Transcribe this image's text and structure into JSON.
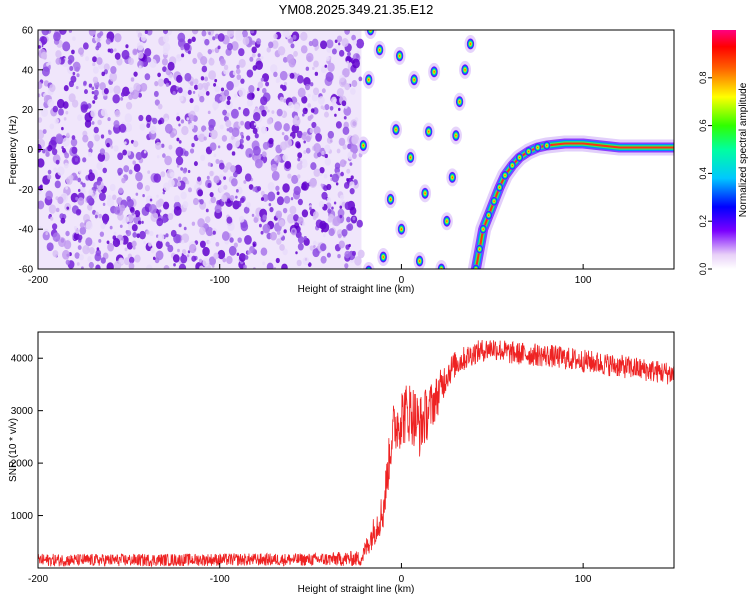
{
  "figure_title": "YM08.2025.349.21.35.E12",
  "colors": {
    "specgram_low": "#f0e6fb",
    "specgram_high": "#5a00c8",
    "snr_line": "#ee2222",
    "axis": "#000000"
  },
  "colorbar": {
    "label": "Normalized spectral amplitude",
    "ticks": [
      {
        "v": 0.0,
        "label": "0.0"
      },
      {
        "v": 0.2,
        "label": "0.2"
      },
      {
        "v": 0.4,
        "label": "0.4"
      },
      {
        "v": 0.6,
        "label": "0.6"
      },
      {
        "v": 0.8,
        "label": "0.8"
      }
    ],
    "range": [
      0,
      1
    ]
  },
  "chart_data": [
    {
      "type": "heatmap",
      "name": "spectrogram",
      "title": "YM08.2025.349.21.35.E12",
      "xlabel": "Height of straight line (km)",
      "ylabel": "Frequency (Hz)",
      "xlim": [
        -200,
        150
      ],
      "ylim": [
        -60,
        60
      ],
      "xticks": [
        {
          "v": -200,
          "label": "-200"
        },
        {
          "v": -100,
          "label": "-100"
        },
        {
          "v": 0,
          "label": "0"
        },
        {
          "v": 100,
          "label": "100"
        }
      ],
      "yticks": [
        {
          "v": -60,
          "label": "-60"
        },
        {
          "v": -40,
          "label": "-40"
        },
        {
          "v": -20,
          "label": "-20"
        },
        {
          "v": 0,
          "label": "0"
        },
        {
          "v": 20,
          "label": "20"
        },
        {
          "v": 40,
          "label": "40"
        },
        {
          "v": 60,
          "label": "60"
        }
      ],
      "noise_region_x": [
        -200,
        -22
      ],
      "aliased_blobs": [
        {
          "x": -21,
          "y": 2
        },
        {
          "x": -18,
          "y": 35
        },
        {
          "x": -17,
          "y": 60
        },
        {
          "x": -18,
          "y": -61
        },
        {
          "x": -12,
          "y": 50
        },
        {
          "x": -10,
          "y": -54
        },
        {
          "x": -6,
          "y": -25
        },
        {
          "x": -3,
          "y": 10
        },
        {
          "x": -1,
          "y": 47
        },
        {
          "x": 0,
          "y": -40
        },
        {
          "x": 5,
          "y": -4
        },
        {
          "x": 7,
          "y": 35
        },
        {
          "x": 10,
          "y": -56
        },
        {
          "x": 13,
          "y": -22
        },
        {
          "x": 15,
          "y": 9
        },
        {
          "x": 18,
          "y": 39
        },
        {
          "x": 22,
          "y": -60
        },
        {
          "x": 25,
          "y": -36
        },
        {
          "x": 28,
          "y": -14
        },
        {
          "x": 30,
          "y": 7
        },
        {
          "x": 32,
          "y": 24
        },
        {
          "x": 35,
          "y": 40
        },
        {
          "x": 38,
          "y": 53
        }
      ],
      "dispersion_curve": [
        {
          "x": 41,
          "y": -60
        },
        {
          "x": 43,
          "y": -50
        },
        {
          "x": 45,
          "y": -40
        },
        {
          "x": 48,
          "y": -33
        },
        {
          "x": 51,
          "y": -26
        },
        {
          "x": 54,
          "y": -19
        },
        {
          "x": 57,
          "y": -13
        },
        {
          "x": 61,
          "y": -8
        },
        {
          "x": 65,
          "y": -4
        },
        {
          "x": 70,
          "y": -1
        },
        {
          "x": 75,
          "y": 1
        },
        {
          "x": 80,
          "y": 2
        },
        {
          "x": 90,
          "y": 3
        },
        {
          "x": 100,
          "y": 3
        },
        {
          "x": 110,
          "y": 2
        },
        {
          "x": 120,
          "y": 1
        },
        {
          "x": 130,
          "y": 1
        },
        {
          "x": 140,
          "y": 1
        },
        {
          "x": 150,
          "y": 1
        }
      ]
    },
    {
      "type": "line",
      "name": "snr",
      "xlabel": "Height of straight line (km)",
      "ylabel": "SNR (10 * v/v)",
      "xlim": [
        -200,
        150
      ],
      "ylim": [
        0,
        4500
      ],
      "xticks": [
        {
          "v": -200,
          "label": "-200"
        },
        {
          "v": -100,
          "label": "-100"
        },
        {
          "v": 0,
          "label": "0"
        },
        {
          "v": 100,
          "label": "100"
        }
      ],
      "yticks": [
        {
          "v": 1000,
          "label": "1000"
        },
        {
          "v": 2000,
          "label": "2000"
        },
        {
          "v": 3000,
          "label": "3000"
        },
        {
          "v": 4000,
          "label": "4000"
        }
      ],
      "x": [
        -200,
        -150,
        -100,
        -50,
        -22,
        -10,
        -5,
        0,
        5,
        10,
        15,
        20,
        25,
        30,
        40,
        50,
        60,
        80,
        100,
        120,
        140,
        150
      ],
      "y": [
        150,
        150,
        160,
        160,
        180,
        1100,
        2600,
        2900,
        3000,
        2700,
        3000,
        3300,
        3700,
        3900,
        4100,
        4200,
        4100,
        4050,
        3950,
        3850,
        3750,
        3700
      ],
      "noise_amplitude": [
        120,
        120,
        120,
        120,
        150,
        400,
        500,
        600,
        600,
        600,
        500,
        400,
        300,
        250,
        220,
        220,
        220,
        220,
        220,
        220,
        220,
        220
      ]
    }
  ]
}
